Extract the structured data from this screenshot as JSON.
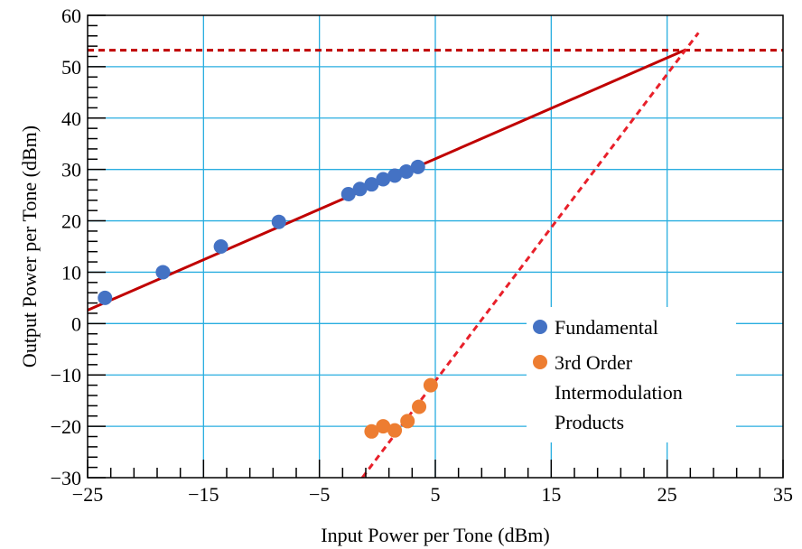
{
  "chart_data": {
    "type": "scatter",
    "title": "",
    "xlabel": "Input Power per Tone (dBm)",
    "ylabel": "Output Power per Tone (dBm)",
    "xlim": [
      -25,
      35
    ],
    "ylim": [
      -30,
      60
    ],
    "x_ticks": [
      -25,
      -15,
      -5,
      5,
      15,
      25,
      35
    ],
    "y_ticks": [
      -30,
      -20,
      -10,
      0,
      10,
      20,
      30,
      40,
      50,
      60
    ],
    "x_tick_labels": [
      "−25",
      "−15",
      "−5",
      "5",
      "15",
      "25",
      "35"
    ],
    "y_tick_labels": [
      "−30",
      "−20",
      "−10",
      "0",
      "10",
      "20",
      "30",
      "40",
      "50",
      "60"
    ],
    "grid": true,
    "minor_ticks": true,
    "legend_position": "bottom-right",
    "colors": {
      "grid": "#29aee0",
      "fundamental": "#4472c4",
      "im3": "#ed7d31",
      "lines": "#c00000",
      "dashed": "#e8202a"
    },
    "series": [
      {
        "name": "Fundamental",
        "marker": "circle",
        "points": [
          [
            -23.5,
            5.0
          ],
          [
            -18.5,
            10.0
          ],
          [
            -13.5,
            15.0
          ],
          [
            -8.5,
            19.8
          ],
          [
            -2.5,
            25.2
          ],
          [
            -1.5,
            26.2
          ],
          [
            -0.5,
            27.1
          ],
          [
            0.5,
            28.1
          ],
          [
            1.5,
            28.8
          ],
          [
            2.5,
            29.6
          ],
          [
            3.5,
            30.5
          ]
        ]
      },
      {
        "name": "3rd Order Intermodulation Products",
        "marker": "circle",
        "points": [
          [
            -0.5,
            -21.0
          ],
          [
            0.5,
            -20.0
          ],
          [
            1.5,
            -20.8
          ],
          [
            2.6,
            -19.0
          ],
          [
            3.6,
            -16.2
          ],
          [
            4.6,
            -12.0
          ]
        ]
      }
    ],
    "reference_lines": [
      {
        "style": "solid",
        "color": "lines",
        "x": [
          -25,
          26.5
        ],
        "y": [
          2.6,
          53.2
        ]
      },
      {
        "style": "dashed",
        "color": "lines",
        "x": [
          -25,
          35
        ],
        "y": [
          53.2,
          53.2
        ]
      },
      {
        "style": "dashed",
        "color": "dashed",
        "x": [
          -1.3,
          27.7
        ],
        "y": [
          -30,
          56.6
        ]
      }
    ],
    "legend": [
      {
        "label": "Fundamental",
        "color": "fundamental"
      },
      {
        "label": "3rd Order\nIntermodulation\nProducts",
        "color": "im3"
      }
    ]
  }
}
